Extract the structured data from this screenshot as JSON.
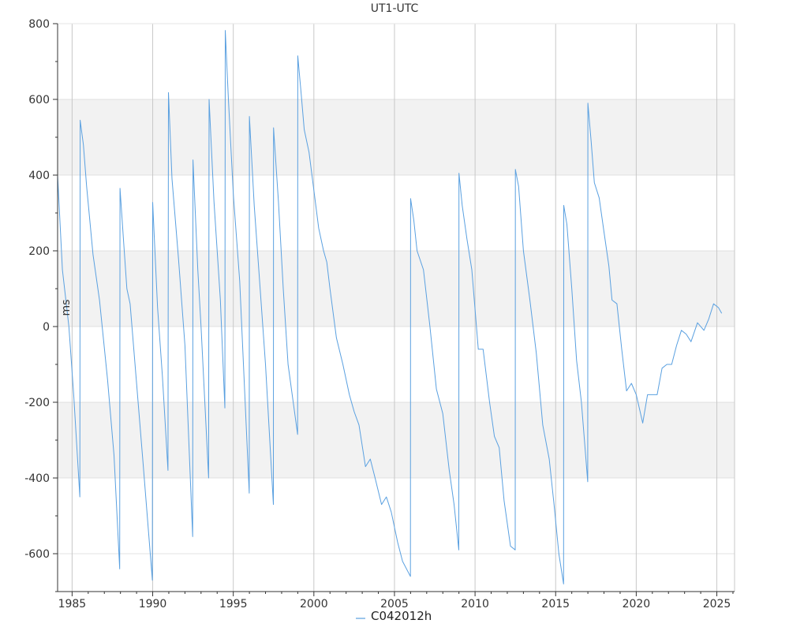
{
  "chart_data": {
    "type": "line",
    "title": "UT1-UTC",
    "xlabel": "",
    "ylabel": "ms",
    "xlim": [
      1984.1,
      2026.1
    ],
    "ylim": [
      -700,
      800
    ],
    "x_ticks": [
      1985,
      1990,
      1995,
      2000,
      2005,
      2010,
      2015,
      2020,
      2025
    ],
    "x_tick_labels": [
      "1985",
      "1990",
      "1995",
      "2000",
      "2005",
      "2010",
      "2015",
      "2020",
      "2025"
    ],
    "y_ticks": [
      -600,
      -400,
      -200,
      0,
      200,
      400,
      600,
      800
    ],
    "y_tick_labels": [
      "-600",
      "-400",
      "-200",
      "0",
      "200",
      "400",
      "600",
      "800"
    ],
    "background_bands": [
      [
        -400,
        -200
      ],
      [
        0,
        200
      ],
      [
        400,
        600
      ]
    ],
    "grid": true,
    "legend_position": "bottom-center",
    "colors": {
      "series": "#5aa0e0",
      "band": "#f2f2f2",
      "grid": "#c8c8c8",
      "axis": "#333333"
    },
    "series": [
      {
        "name": "C042012h",
        "points": [
          [
            1984.1,
            400
          ],
          [
            1984.4,
            150
          ],
          [
            1984.8,
            0
          ],
          [
            1985.1,
            -180
          ],
          [
            1985.48,
            -450
          ],
          [
            1985.5,
            545
          ],
          [
            1985.7,
            480
          ],
          [
            1985.9,
            370
          ],
          [
            1986.3,
            190
          ],
          [
            1986.7,
            70
          ],
          [
            1987.2,
            -140
          ],
          [
            1987.6,
            -340
          ],
          [
            1987.95,
            -640
          ],
          [
            1987.97,
            365
          ],
          [
            1988.2,
            220
          ],
          [
            1988.4,
            100
          ],
          [
            1988.6,
            60
          ],
          [
            1989.0,
            -150
          ],
          [
            1989.4,
            -360
          ],
          [
            1989.98,
            -670
          ],
          [
            1990.0,
            328
          ],
          [
            1990.3,
            50
          ],
          [
            1990.6,
            -130
          ],
          [
            1990.95,
            -380
          ],
          [
            1990.98,
            618
          ],
          [
            1991.2,
            390
          ],
          [
            1991.6,
            180
          ],
          [
            1992.0,
            -50
          ],
          [
            1992.48,
            -555
          ],
          [
            1992.5,
            440
          ],
          [
            1992.8,
            150
          ],
          [
            1993.0,
            0
          ],
          [
            1993.47,
            -400
          ],
          [
            1993.5,
            600
          ],
          [
            1993.8,
            330
          ],
          [
            1994.2,
            70
          ],
          [
            1994.48,
            -215
          ],
          [
            1994.5,
            782
          ],
          [
            1994.7,
            600
          ],
          [
            1995.0,
            350
          ],
          [
            1995.4,
            120
          ],
          [
            1995.99,
            -440
          ],
          [
            1996.0,
            555
          ],
          [
            1996.3,
            320
          ],
          [
            1996.7,
            80
          ],
          [
            1997.0,
            -100
          ],
          [
            1997.49,
            -470
          ],
          [
            1997.5,
            525
          ],
          [
            1997.8,
            330
          ],
          [
            1998.1,
            100
          ],
          [
            1998.4,
            -100
          ],
          [
            1998.99,
            -285
          ],
          [
            1999.0,
            715
          ],
          [
            1999.2,
            620
          ],
          [
            1999.4,
            520
          ],
          [
            1999.7,
            460
          ],
          [
            2000.0,
            360
          ],
          [
            2000.3,
            260
          ],
          [
            2000.6,
            200
          ],
          [
            2000.8,
            170
          ],
          [
            2001.0,
            100
          ],
          [
            2001.4,
            -30
          ],
          [
            2001.8,
            -100
          ],
          [
            2002.2,
            -180
          ],
          [
            2002.5,
            -225
          ],
          [
            2002.8,
            -260
          ],
          [
            2003.2,
            -370
          ],
          [
            2003.5,
            -350
          ],
          [
            2003.8,
            -400
          ],
          [
            2004.2,
            -470
          ],
          [
            2004.5,
            -450
          ],
          [
            2004.8,
            -490
          ],
          [
            2005.2,
            -570
          ],
          [
            2005.5,
            -620
          ],
          [
            2005.99,
            -660
          ],
          [
            2006.0,
            338
          ],
          [
            2006.2,
            280
          ],
          [
            2006.4,
            200
          ],
          [
            2006.8,
            150
          ],
          [
            2007.2,
            0
          ],
          [
            2007.6,
            -165
          ],
          [
            2008.0,
            -230
          ],
          [
            2008.4,
            -380
          ],
          [
            2008.7,
            -470
          ],
          [
            2008.99,
            -590
          ],
          [
            2009.0,
            405
          ],
          [
            2009.2,
            320
          ],
          [
            2009.5,
            230
          ],
          [
            2009.8,
            150
          ],
          [
            2010.2,
            -60
          ],
          [
            2010.5,
            -60
          ],
          [
            2010.9,
            -200
          ],
          [
            2011.2,
            -290
          ],
          [
            2011.5,
            -320
          ],
          [
            2011.8,
            -460
          ],
          [
            2012.2,
            -580
          ],
          [
            2012.49,
            -590
          ],
          [
            2012.5,
            415
          ],
          [
            2012.7,
            370
          ],
          [
            2013.0,
            200
          ],
          [
            2013.4,
            70
          ],
          [
            2013.8,
            -70
          ],
          [
            2014.2,
            -260
          ],
          [
            2014.6,
            -350
          ],
          [
            2014.9,
            -470
          ],
          [
            2015.2,
            -600
          ],
          [
            2015.49,
            -680
          ],
          [
            2015.5,
            320
          ],
          [
            2015.7,
            270
          ],
          [
            2016.0,
            100
          ],
          [
            2016.3,
            -90
          ],
          [
            2016.6,
            -200
          ],
          [
            2016.99,
            -410
          ],
          [
            2017.0,
            590
          ],
          [
            2017.2,
            490
          ],
          [
            2017.4,
            380
          ],
          [
            2017.7,
            340
          ],
          [
            2018.0,
            250
          ],
          [
            2018.3,
            160
          ],
          [
            2018.5,
            70
          ],
          [
            2018.8,
            60
          ],
          [
            2019.1,
            -60
          ],
          [
            2019.4,
            -170
          ],
          [
            2019.7,
            -150
          ],
          [
            2020.0,
            -180
          ],
          [
            2020.4,
            -255
          ],
          [
            2020.7,
            -180
          ],
          [
            2021.0,
            -180
          ],
          [
            2021.3,
            -180
          ],
          [
            2021.6,
            -110
          ],
          [
            2021.9,
            -100
          ],
          [
            2022.2,
            -100
          ],
          [
            2022.5,
            -50
          ],
          [
            2022.8,
            -10
          ],
          [
            2023.1,
            -20
          ],
          [
            2023.4,
            -40
          ],
          [
            2023.8,
            10
          ],
          [
            2024.2,
            -10
          ],
          [
            2024.5,
            20
          ],
          [
            2024.8,
            60
          ],
          [
            2025.1,
            50
          ],
          [
            2025.3,
            35
          ]
        ]
      }
    ]
  }
}
